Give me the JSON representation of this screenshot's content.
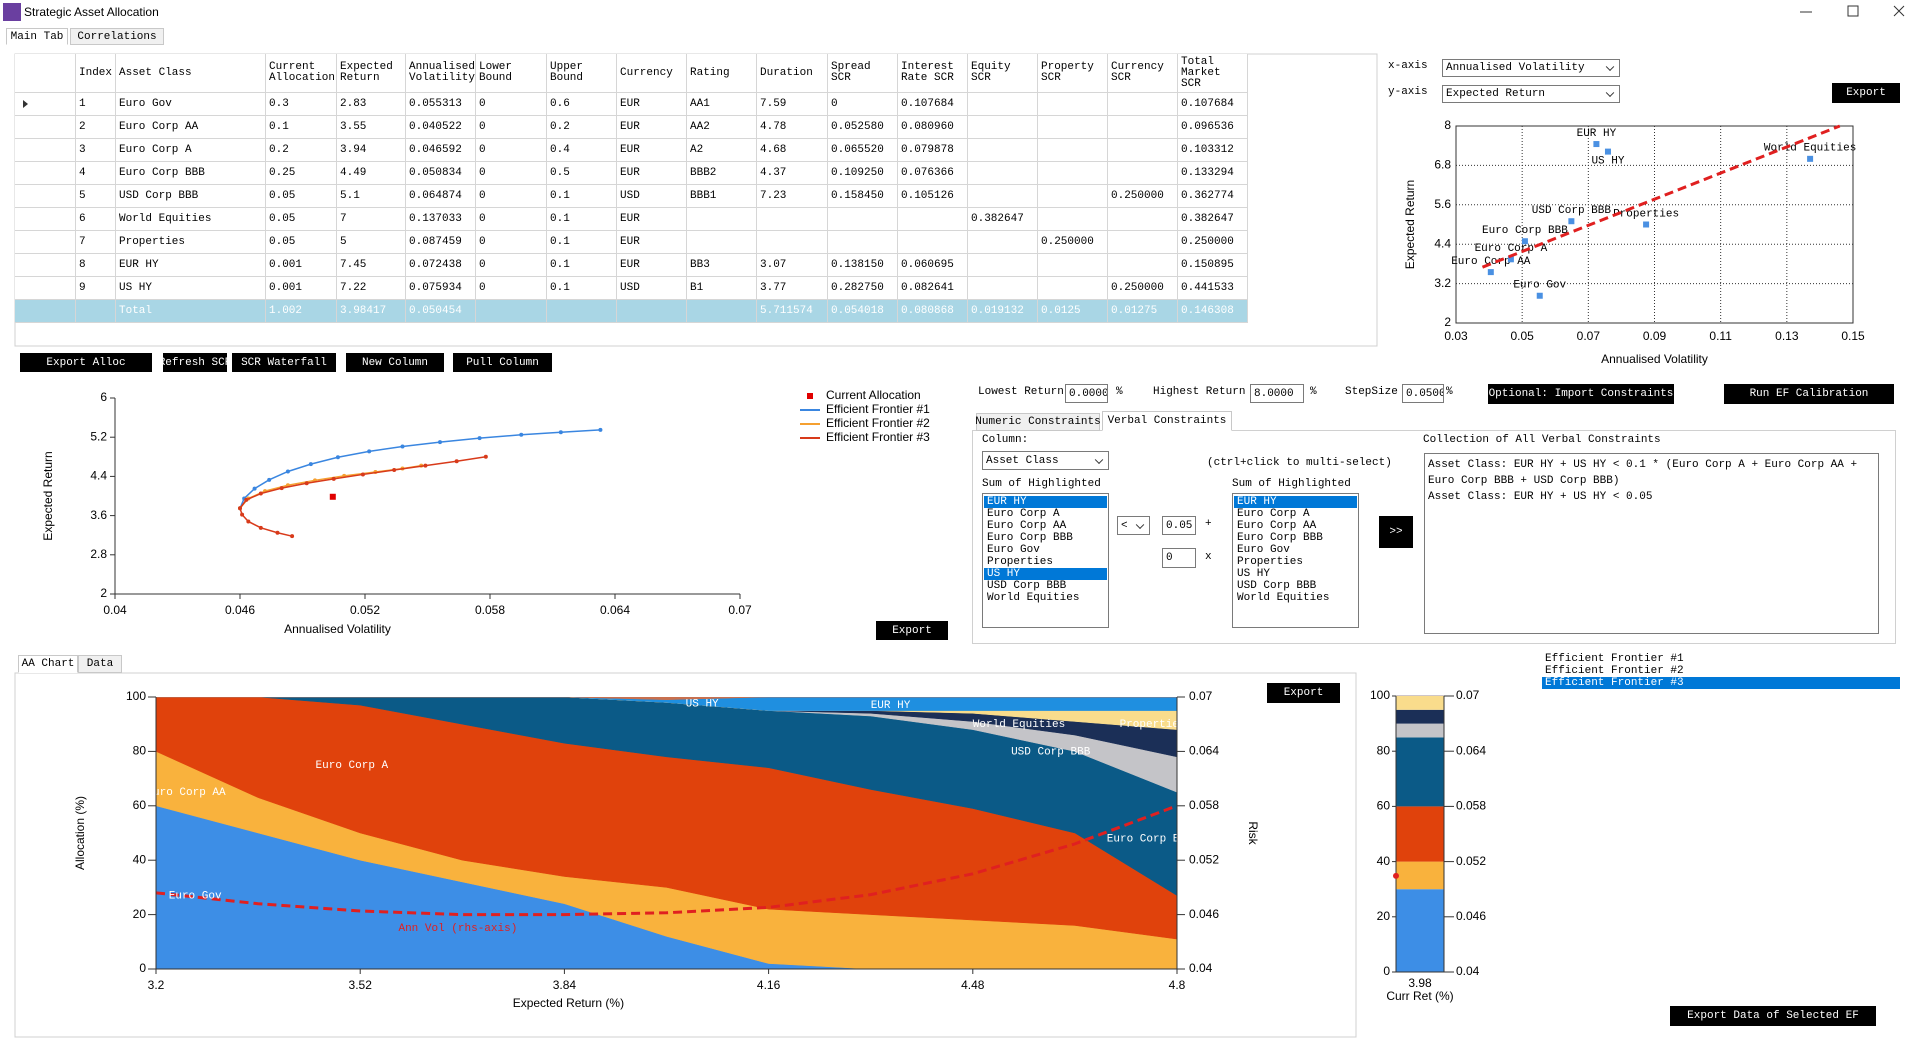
{
  "window": {
    "title": "Strategic Asset Allocation"
  },
  "tabs": [
    "Main Tab",
    "Correlations"
  ],
  "table": {
    "columns": [
      "Index",
      "Asset Class",
      "Current Allocation",
      "Expected Return",
      "Annualised Volatility",
      "Lower Bound",
      "Upper Bound",
      "Currency",
      "Rating",
      "Duration",
      "Spread SCR",
      "Interest Rate SCR",
      "Equity SCR",
      "Property SCR",
      "Currency SCR",
      "Total Market SCR"
    ],
    "rows": [
      [
        "1",
        "Euro Gov",
        "0.3",
        "2.83",
        "0.055313",
        "0",
        "0.6",
        "EUR",
        "AA1",
        "7.59",
        "0",
        "0.107684",
        null,
        null,
        null,
        "0.107684"
      ],
      [
        "2",
        "Euro Corp AA",
        "0.1",
        "3.55",
        "0.040522",
        "0",
        "0.2",
        "EUR",
        "AA2",
        "4.78",
        "0.052580",
        "0.080960",
        null,
        null,
        null,
        "0.096536"
      ],
      [
        "3",
        "Euro Corp A",
        "0.2",
        "3.94",
        "0.046592",
        "0",
        "0.4",
        "EUR",
        "A2",
        "4.68",
        "0.065520",
        "0.079878",
        null,
        null,
        null,
        "0.103312"
      ],
      [
        "4",
        "Euro Corp BBB",
        "0.25",
        "4.49",
        "0.050834",
        "0",
        "0.5",
        "EUR",
        "BBB2",
        "4.37",
        "0.109250",
        "0.076366",
        null,
        null,
        null,
        "0.133294"
      ],
      [
        "5",
        "USD Corp BBB",
        "0.05",
        "5.1",
        "0.064874",
        "0",
        "0.1",
        "USD",
        "BBB1",
        "7.23",
        "0.158450",
        "0.105126",
        null,
        null,
        "0.250000",
        "0.362774"
      ],
      [
        "6",
        "World Equities",
        "0.05",
        "7",
        "0.137033",
        "0",
        "0.1",
        "EUR",
        null,
        null,
        null,
        null,
        "0.382647",
        null,
        null,
        "0.382647"
      ],
      [
        "7",
        "Properties",
        "0.05",
        "5",
        "0.087459",
        "0",
        "0.1",
        "EUR",
        null,
        null,
        null,
        null,
        null,
        "0.250000",
        null,
        "0.250000"
      ],
      [
        "8",
        "EUR HY",
        "0.001",
        "7.45",
        "0.072438",
        "0",
        "0.1",
        "EUR",
        "BB3",
        "3.07",
        "0.138150",
        "0.060695",
        null,
        null,
        null,
        "0.150895"
      ],
      [
        "9",
        "US HY",
        "0.001",
        "7.22",
        "0.075934",
        "0",
        "0.1",
        "USD",
        "B1",
        "3.77",
        "0.282750",
        "0.082641",
        null,
        null,
        "0.250000",
        "0.441533"
      ]
    ],
    "total": [
      null,
      "Total",
      "1.002",
      "3.98417",
      "0.050454",
      null,
      null,
      null,
      null,
      "5.711574",
      "0.054018",
      "0.080868",
      "0.019132",
      "0.0125",
      "0.01275",
      "0.146308"
    ]
  },
  "table_buttons": [
    "Export Alloc",
    "Refresh SCR",
    "SCR Waterfall",
    "New Column",
    "Pull Column"
  ],
  "scatter_controls": {
    "x_label": "x-axis",
    "x_value": "Annualised Volatility",
    "y_label": "y-axis",
    "y_value": "Expected Return",
    "export": "Export"
  },
  "frontier_export": "Export",
  "constraints": {
    "lowest_label": "Lowest Return",
    "lowest": "0.0000",
    "highest_label": "Highest Return",
    "highest": "8.0000",
    "step_label": "StepSize",
    "step": "0.0500",
    "unit": "%",
    "import": "Optional: Import Constraints",
    "run": "Run EF Calibration",
    "tabs": [
      "Numeric Constraints",
      "Verbal Constraints"
    ],
    "column_label": "Column:",
    "column": "Asset Class",
    "hint": "(ctrl+click to multi-select)",
    "sum_label": "Sum of Highlighted",
    "list_items": [
      "EUR HY",
      "Euro Corp A",
      "Euro Corp AA",
      "Euro Corp BBB",
      "Euro Gov",
      "Properties",
      "US HY",
      "USD Corp BBB",
      "World Equities"
    ],
    "left_selected": [
      0,
      6
    ],
    "right_selected": [
      0
    ],
    "operator": "<",
    "coef": "0.05",
    "plus": "+",
    "const": "0",
    "times": "x",
    "add": ">>",
    "collection_label": "Collection of All Verbal Constraints",
    "collection": [
      "Asset Class: EUR HY + US HY < 0.1 * (Euro Corp A + Euro Corp AA + Euro Corp BBB + USD Corp BBB)",
      "Asset Class: EUR HY + US HY < 0.05"
    ]
  },
  "aa_tabs": [
    "AA Chart",
    "Data"
  ],
  "aa_export": "Export",
  "frontier_list": {
    "items": [
      "Efficient Frontier #1",
      "Efficient Frontier #2",
      "Efficient Frontier #3"
    ],
    "selected": 2
  },
  "export_selected": "Export Data of Selected EF",
  "chart_data": [
    {
      "type": "scatter",
      "x_label": "Annualised Volatility",
      "y_label": "Expected Return",
      "xlim": [
        0.03,
        0.15
      ],
      "xticks": [
        0.03,
        0.05,
        0.07,
        0.09,
        0.11,
        0.13,
        0.15
      ],
      "ylim": [
        2,
        8
      ],
      "yticks": [
        2,
        3.2,
        4.4,
        5.6,
        6.8,
        8
      ],
      "grid": true,
      "color": "#4a90e2",
      "points": [
        {
          "label": "Euro Gov",
          "x": 0.055313,
          "y": 2.83
        },
        {
          "label": "Euro Corp AA",
          "x": 0.040522,
          "y": 3.55
        },
        {
          "label": "Euro Corp A",
          "x": 0.046592,
          "y": 3.94
        },
        {
          "label": "Euro Corp BBB",
          "x": 0.050834,
          "y": 4.49
        },
        {
          "label": "USD Corp BBB",
          "x": 0.064874,
          "y": 5.1
        },
        {
          "label": "World Equities",
          "x": 0.137033,
          "y": 7
        },
        {
          "label": "Properties",
          "x": 0.087459,
          "y": 5
        },
        {
          "label": "EUR HY",
          "x": 0.072438,
          "y": 7.45
        },
        {
          "label": "US HY",
          "x": 0.075934,
          "y": 7.22
        }
      ],
      "trend": {
        "x": [
          0.038,
          0.146
        ],
        "y": [
          3.7,
          8.0
        ],
        "color": "#e02020",
        "style": "dashed"
      }
    },
    {
      "type": "line",
      "x_label": "Annualised Volatility",
      "y_label": "Expected Return",
      "xlim": [
        0.04,
        0.07
      ],
      "xticks": [
        0.04,
        0.046,
        0.052,
        0.058,
        0.064,
        0.07
      ],
      "ylim": [
        2,
        6
      ],
      "yticks": [
        2,
        2.8,
        3.6,
        4.4,
        5.2,
        6
      ],
      "legend": "upper right",
      "series": [
        {
          "name": "Current Allocation",
          "color": "#e00000",
          "line": false,
          "x": [
            0.050454
          ],
          "y": [
            3.98417
          ]
        },
        {
          "name": "Efficient Frontier #1",
          "color": "#3a86e0",
          "line": true,
          "x": [
            0.046,
            0.0462,
            0.0467,
            0.0474,
            0.0483,
            0.0494,
            0.0507,
            0.0522,
            0.0538,
            0.0556,
            0.0575,
            0.0595,
            0.0614,
            0.0633
          ],
          "y": [
            3.75,
            3.95,
            4.15,
            4.33,
            4.5,
            4.65,
            4.79,
            4.91,
            5.01,
            5.1,
            5.18,
            5.25,
            5.3,
            5.35
          ]
        },
        {
          "name": "Efficient Frontier #2",
          "color": "#f5a030",
          "line": true,
          "x": [
            0.046,
            0.0464,
            0.0472,
            0.0483,
            0.0496,
            0.051,
            0.0525,
            0.0538,
            0.0547
          ],
          "y": [
            3.75,
            3.95,
            4.1,
            4.22,
            4.32,
            4.41,
            4.49,
            4.56,
            4.62
          ]
        },
        {
          "name": "Efficient Frontier #3",
          "color": "#d83a1a",
          "line": true,
          "x": [
            0.0485,
            0.0478,
            0.047,
            0.0464,
            0.0461,
            0.046,
            0.0463,
            0.047,
            0.048,
            0.0492,
            0.0505,
            0.0519,
            0.0534,
            0.0549,
            0.0564,
            0.0578
          ],
          "y": [
            3.18,
            3.25,
            3.35,
            3.48,
            3.62,
            3.75,
            3.92,
            4.05,
            4.16,
            4.26,
            4.35,
            4.44,
            4.53,
            4.62,
            4.71,
            4.8
          ]
        }
      ]
    },
    {
      "type": "stacked_area",
      "x_label": "Expected Return (%)",
      "y_label": "Allocation (%)",
      "y2_label": "Risk",
      "x": [
        3.2,
        3.36,
        3.52,
        3.68,
        3.84,
        4.0,
        4.16,
        4.32,
        4.48,
        4.64,
        4.8
      ],
      "xlim": [
        3.2,
        4.8
      ],
      "xticks": [
        3.2,
        3.52,
        3.84,
        4.16,
        4.48,
        4.8
      ],
      "ylim": [
        0,
        100
      ],
      "yticks": [
        0,
        20,
        40,
        60,
        80,
        100
      ],
      "y2lim": [
        0.04,
        0.07
      ],
      "y2ticks": [
        0.04,
        0.046,
        0.052,
        0.058,
        0.064,
        0.07
      ],
      "series": [
        {
          "name": "Euro Gov",
          "color": "#3d8ee6",
          "values": [
            60,
            50,
            40,
            32,
            24,
            12,
            2,
            0,
            0,
            0,
            0
          ]
        },
        {
          "name": "Euro Corp AA",
          "color": "#f9b23d",
          "values": [
            20,
            13,
            10,
            8,
            10,
            18,
            20,
            20,
            18,
            16,
            11
          ]
        },
        {
          "name": "Euro Corp A",
          "color": "#e0420c",
          "values": [
            20,
            37,
            47,
            50,
            49,
            48,
            52,
            46,
            41,
            34,
            16
          ]
        },
        {
          "name": "Euro Corp BBB",
          "color": "#0b5a87",
          "values": [
            0,
            0,
            3,
            10,
            17,
            20,
            21,
            27,
            29,
            30,
            38
          ]
        },
        {
          "name": "USD Corp BBB",
          "color": "#c4c4c8",
          "values": [
            0,
            0,
            0,
            0,
            0,
            0,
            0,
            1,
            3,
            6,
            13
          ]
        },
        {
          "name": "World Equities",
          "color": "#1b2f57",
          "values": [
            0,
            0,
            0,
            0,
            0,
            0,
            0,
            1,
            3,
            5,
            10
          ]
        },
        {
          "name": "Properties",
          "color": "#f9dc8c",
          "values": [
            0,
            0,
            0,
            0,
            0,
            0,
            0,
            0,
            1,
            4,
            7
          ]
        },
        {
          "name": "EUR HY",
          "color": "#1f8fe0",
          "values": [
            0,
            0,
            0,
            0,
            0,
            1,
            5,
            5,
            5,
            5,
            5
          ]
        },
        {
          "name": "US HY",
          "color": "#c8704f",
          "values": [
            0,
            0,
            0,
            0,
            0,
            1,
            0,
            0,
            0,
            0,
            0
          ]
        },
        {
          "name": "Ann Vol (rhs-axis)",
          "color": "#e02020",
          "style": "dashed",
          "axis": "y2",
          "values": [
            0.0484,
            0.0472,
            0.0464,
            0.046,
            0.046,
            0.0462,
            0.0468,
            0.0482,
            0.0505,
            0.0538,
            0.058
          ]
        }
      ]
    },
    {
      "type": "stacked_bar",
      "categories": [
        "3.98"
      ],
      "x_label": "Curr Ret (%)",
      "ylim": [
        0,
        100
      ],
      "yticks": [
        0,
        20,
        40,
        60,
        80,
        100
      ],
      "y2lim": [
        0.04,
        0.07
      ],
      "y2ticks": [
        0.04,
        0.046,
        0.052,
        0.058,
        0.064,
        0.07
      ],
      "series": [
        {
          "color": "#3d8ee6",
          "values": [
            30
          ]
        },
        {
          "color": "#f9b23d",
          "values": [
            10
          ]
        },
        {
          "color": "#e0420c",
          "values": [
            20
          ]
        },
        {
          "color": "#0b5a87",
          "values": [
            25
          ]
        },
        {
          "color": "#c4c4c8",
          "values": [
            5
          ]
        },
        {
          "color": "#1b2f57",
          "values": [
            5
          ]
        },
        {
          "color": "#f9dc8c",
          "values": [
            5
          ]
        },
        {
          "color": "#1f8fe0",
          "values": [
            0.1
          ]
        },
        {
          "color": "#c8704f",
          "values": [
            0.1
          ]
        }
      ],
      "risk": {
        "color": "#e02020",
        "values": [
          0.050454
        ]
      }
    }
  ]
}
